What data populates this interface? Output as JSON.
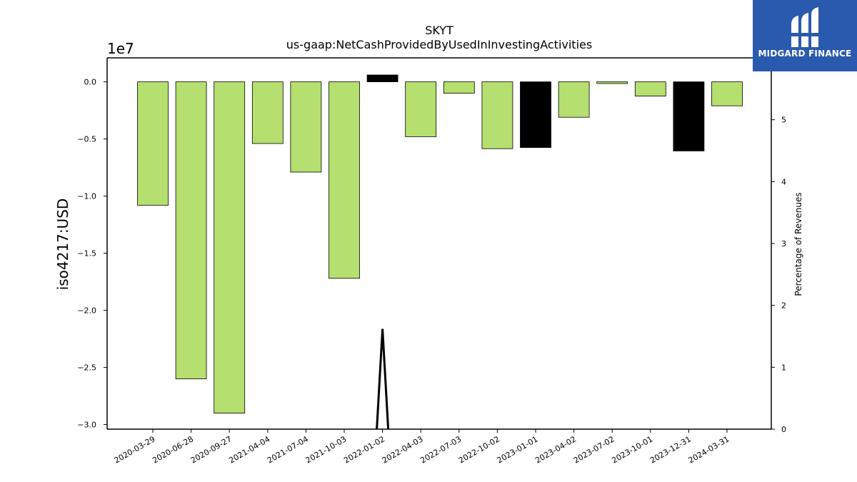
{
  "chart_data": {
    "type": "bar",
    "title": "SKYT",
    "subtitle": "us-gaap:NetCashProvidedByUsedInInvestingActivities",
    "ylabel": "iso4217:USD",
    "y_offset_label": "1e7",
    "y2label": "Percentage of Revenues",
    "ylim": [
      -30400000,
      2100000
    ],
    "y2lim": [
      0,
      6.0
    ],
    "yticks": [
      0.0,
      -0.5,
      -1.0,
      -1.5,
      -2.0,
      -2.5,
      -3.0
    ],
    "ytick_labels": [
      "0.0",
      "−0.5",
      "−1.0",
      "−1.5",
      "−2.0",
      "−2.5",
      "−3.0"
    ],
    "y2ticks": [
      0,
      1,
      2,
      3,
      4,
      5
    ],
    "y2tick_labels": [
      "0",
      "1",
      "2",
      "3",
      "4",
      "5"
    ],
    "categories": [
      "2020-03-29",
      "2020-06-28",
      "2020-09-27",
      "2021-04-04",
      "2021-07-04",
      "2021-10-03",
      "2022-01-02",
      "2022-04-03",
      "2022-07-03",
      "2022-10-02",
      "2023-01-01",
      "2023-04-02",
      "2023-07-02",
      "2023-10-01",
      "2023-12-31",
      "2024-03-31"
    ],
    "values": [
      -10800000,
      -26000000,
      -29000000,
      -5400000,
      -7900000,
      -17200000,
      600000,
      -4800000,
      -1000000,
      -5850000,
      -5750000,
      -3100000,
      -150000,
      -1250000,
      -6050000,
      -2100000
    ],
    "bar_colors": [
      "#b5df6e",
      "#b5df6e",
      "#b5df6e",
      "#b5df6e",
      "#b5df6e",
      "#b5df6e",
      "#000000",
      "#b5df6e",
      "#b5df6e",
      "#b5df6e",
      "#000000",
      "#b5df6e",
      "#b5df6e",
      "#b5df6e",
      "#000000",
      "#b5df6e"
    ],
    "secondary_line": {
      "x": [
        "2022-01-02"
      ],
      "points": [
        [
          -0.15,
          0.0
        ],
        [
          0.0,
          1.62
        ],
        [
          0.15,
          0.0
        ]
      ]
    },
    "grid": false,
    "legend": "none"
  },
  "logo": {
    "name": "MIDGARD FINANCE",
    "bg_color": "#2a5aad"
  },
  "colors": {
    "positive_bar": "#b5df6e",
    "highlight_bar": "#000000",
    "axis": "#000000"
  }
}
